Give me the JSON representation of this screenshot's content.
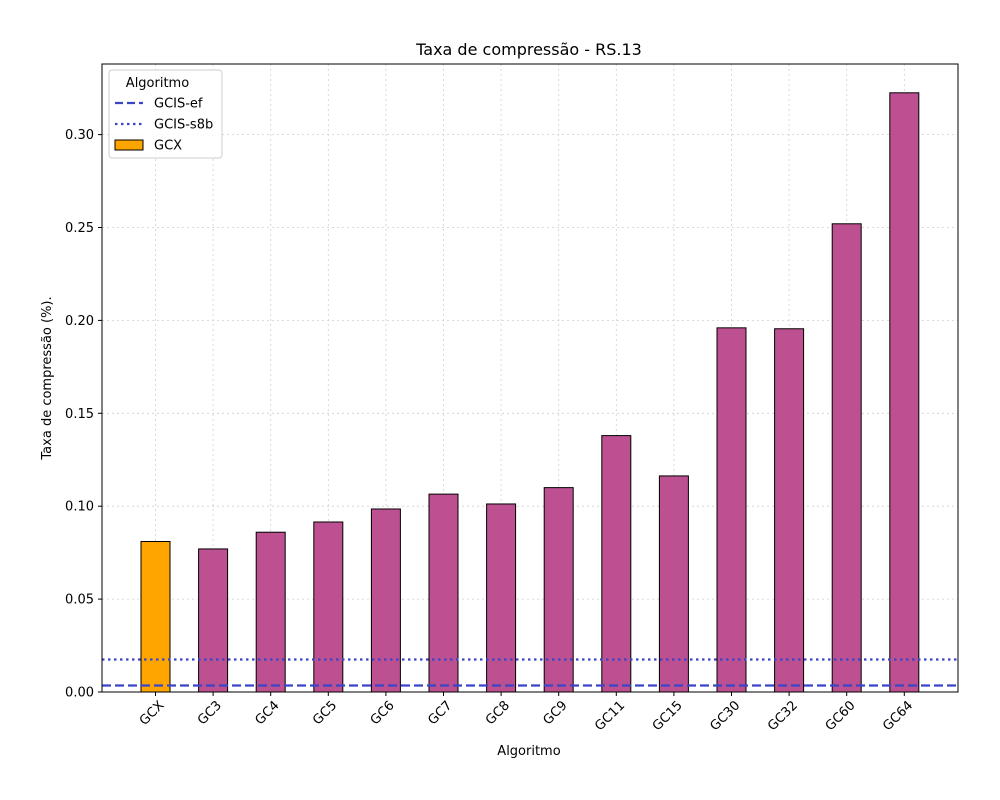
{
  "chart_data": {
    "type": "bar",
    "title": "Taxa de compressão -  RS.13",
    "xlabel": "Algoritmo",
    "ylabel": "Taxa de compressão (%).",
    "categories": [
      "GCX",
      "GC3",
      "GC4",
      "GC5",
      "GC6",
      "GC7",
      "GC8",
      "GC9",
      "GC11",
      "GC15",
      "GC30",
      "GC32",
      "GC60",
      "GC64"
    ],
    "values": [
      0.081,
      0.077,
      0.086,
      0.0915,
      0.0985,
      0.1065,
      0.1012,
      0.11,
      0.138,
      0.1163,
      0.196,
      0.1955,
      0.252,
      0.3225
    ],
    "bar_colors": [
      "#ffa500",
      "#bd5090",
      "#bd5090",
      "#bd5090",
      "#bd5090",
      "#bd5090",
      "#bd5090",
      "#bd5090",
      "#bd5090",
      "#bd5090",
      "#bd5090",
      "#bd5090",
      "#bd5090",
      "#bd5090"
    ],
    "ylim": [
      0,
      0.338
    ],
    "yticks": [
      0.0,
      0.05,
      0.1,
      0.15,
      0.2,
      0.25,
      0.3
    ],
    "ytick_labels": [
      "0.00",
      "0.05",
      "0.10",
      "0.15",
      "0.20",
      "0.25",
      "0.30"
    ],
    "grid": true,
    "hlines": [
      {
        "name": "GCIS-ef",
        "value": 0.0035,
        "style": "dashed",
        "color": "#3a45c8"
      },
      {
        "name": "GCIS-s8b",
        "value": 0.0175,
        "style": "dotted",
        "color": "#3a45c8"
      }
    ],
    "legend": {
      "title": "Algoritmo",
      "placement": "top-left",
      "entries": [
        {
          "label": "GCIS-ef",
          "kind": "dashed-line",
          "color": "#3a45c8"
        },
        {
          "label": "GCIS-s8b",
          "kind": "dotted-line",
          "color": "#3a45c8"
        },
        {
          "label": "GCX",
          "kind": "patch",
          "color": "#ffa500"
        }
      ]
    }
  }
}
